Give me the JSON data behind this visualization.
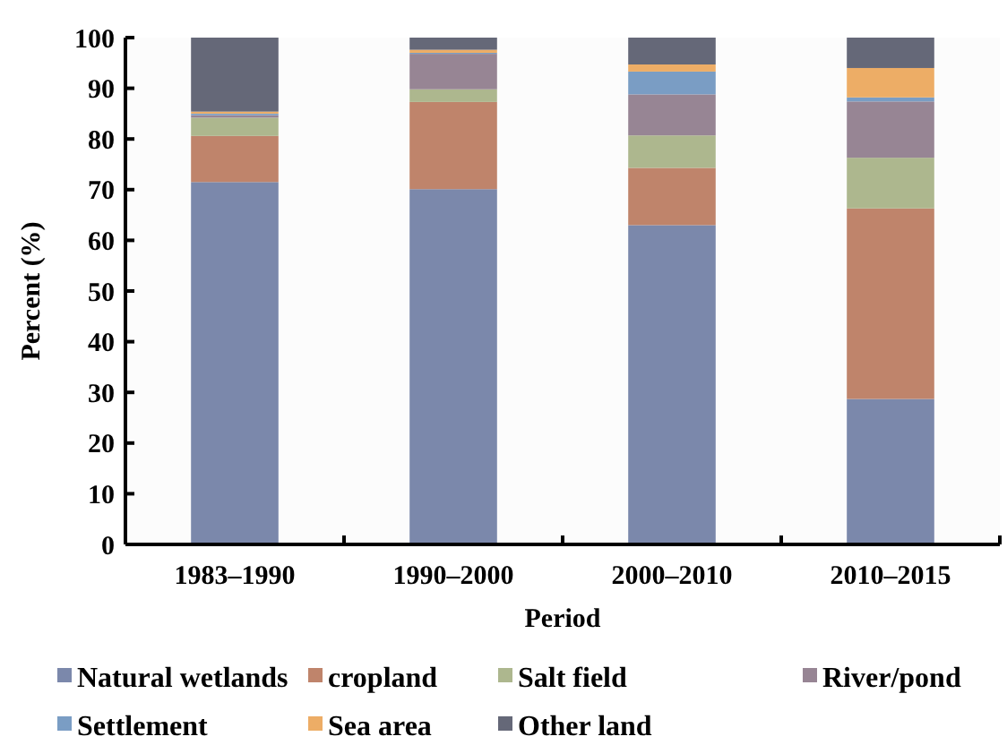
{
  "chart_data": {
    "type": "bar",
    "stacked": true,
    "xlabel": "Period",
    "ylabel": "Percent (%)",
    "categories": [
      "1983–1990",
      "1990–2000",
      "2000–2010",
      "2010–2015"
    ],
    "series": [
      {
        "name": "Natural wetlands",
        "color": "#7b88ab",
        "values": [
          71.5,
          70.1,
          63.0,
          28.7
        ]
      },
      {
        "name": "cropland",
        "color": "#bf846b",
        "values": [
          9.1,
          17.2,
          11.3,
          37.6
        ]
      },
      {
        "name": "Salt field",
        "color": "#adb78e",
        "values": [
          3.6,
          2.5,
          6.4,
          10.0
        ]
      },
      {
        "name": "River/pond",
        "color": "#978594",
        "values": [
          0.5,
          7.0,
          8.1,
          11.1
        ]
      },
      {
        "name": "Settlement",
        "color": "#7a9dc4",
        "values": [
          0.3,
          0.2,
          4.5,
          0.8
        ]
      },
      {
        "name": "Sea area",
        "color": "#edad66",
        "values": [
          0.4,
          0.6,
          1.4,
          5.8
        ]
      },
      {
        "name": "Other land",
        "color": "#656878",
        "values": [
          14.6,
          2.4,
          5.3,
          6.0
        ]
      }
    ],
    "ylim": [
      0,
      100
    ],
    "yticks": [
      0,
      10,
      20,
      30,
      40,
      50,
      60,
      70,
      80,
      90,
      100
    ],
    "grid": false,
    "legend": "bottom"
  }
}
